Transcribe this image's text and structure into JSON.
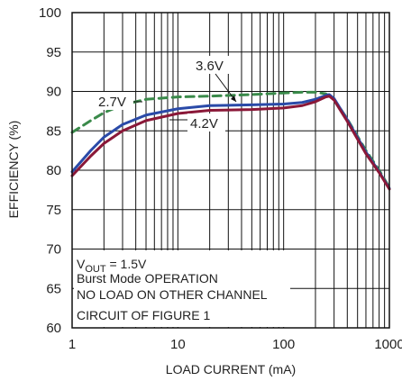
{
  "chart_data": {
    "type": "line",
    "xlabel": "LOAD CURRENT (mA)",
    "ylabel": "EFFICIENCY (%)",
    "xscale": "log",
    "xlim": [
      1,
      1000
    ],
    "ylim": [
      60,
      100
    ],
    "grid": true,
    "x_ticks": [
      1,
      10,
      100,
      1000
    ],
    "x_tick_labels": [
      "1",
      "10",
      "100",
      "1000"
    ],
    "y_ticks": [
      60,
      65,
      70,
      75,
      80,
      85,
      90,
      95,
      100
    ],
    "y_tick_labels": [
      "60",
      "65",
      "70",
      "75",
      "80",
      "85",
      "90",
      "95",
      "100"
    ],
    "series": [
      {
        "name": "2.7V",
        "color": "#3a8a4a",
        "dash": true,
        "points": [
          [
            1,
            84.8
          ],
          [
            1.5,
            86.3
          ],
          [
            2,
            87.3
          ],
          [
            3,
            88.3
          ],
          [
            5,
            89.0
          ],
          [
            10,
            89.3
          ],
          [
            20,
            89.4
          ],
          [
            50,
            89.6
          ],
          [
            100,
            89.8
          ],
          [
            150,
            89.9
          ],
          [
            200,
            89.9
          ],
          [
            250,
            89.7
          ],
          [
            300,
            89.0
          ],
          [
            400,
            86.5
          ],
          [
            600,
            82.5
          ],
          [
            800,
            80.0
          ],
          [
            1000,
            77.8
          ]
        ]
      },
      {
        "name": "3.6V",
        "color": "#2a4aa8",
        "dash": false,
        "points": [
          [
            1,
            79.8
          ],
          [
            1.5,
            82.5
          ],
          [
            2,
            84.2
          ],
          [
            3,
            85.8
          ],
          [
            5,
            87.0
          ],
          [
            10,
            87.8
          ],
          [
            20,
            88.2
          ],
          [
            50,
            88.3
          ],
          [
            100,
            88.4
          ],
          [
            150,
            88.6
          ],
          [
            200,
            89.0
          ],
          [
            250,
            89.5
          ],
          [
            270,
            89.6
          ],
          [
            300,
            89.1
          ],
          [
            400,
            86.4
          ],
          [
            600,
            82.3
          ],
          [
            800,
            79.8
          ],
          [
            1000,
            77.7
          ]
        ]
      },
      {
        "name": "4.2V",
        "color": "#8a1838",
        "dash": false,
        "points": [
          [
            1,
            79.3
          ],
          [
            1.5,
            81.8
          ],
          [
            2,
            83.4
          ],
          [
            3,
            85.0
          ],
          [
            5,
            86.3
          ],
          [
            10,
            87.2
          ],
          [
            20,
            87.6
          ],
          [
            50,
            87.7
          ],
          [
            100,
            87.9
          ],
          [
            150,
            88.2
          ],
          [
            200,
            88.7
          ],
          [
            250,
            89.3
          ],
          [
            270,
            89.4
          ],
          [
            300,
            88.9
          ],
          [
            400,
            86.2
          ],
          [
            600,
            82.1
          ],
          [
            800,
            79.7
          ],
          [
            1000,
            77.6
          ]
        ]
      }
    ],
    "annotations": [
      {
        "text": "2.7V",
        "series": "2.7V"
      },
      {
        "text": "3.6V",
        "series": "3.6V"
      },
      {
        "text": "4.2V",
        "series": "4.2V"
      }
    ],
    "notes": {
      "vout_main": "V",
      "vout_sub": "OUT",
      "vout_rest": " = 1.5V",
      "line2": "Burst Mode OPERATION",
      "line3": "NO LOAD ON OTHER CHANNEL",
      "line4": "CIRCUIT OF FIGURE 1"
    }
  }
}
